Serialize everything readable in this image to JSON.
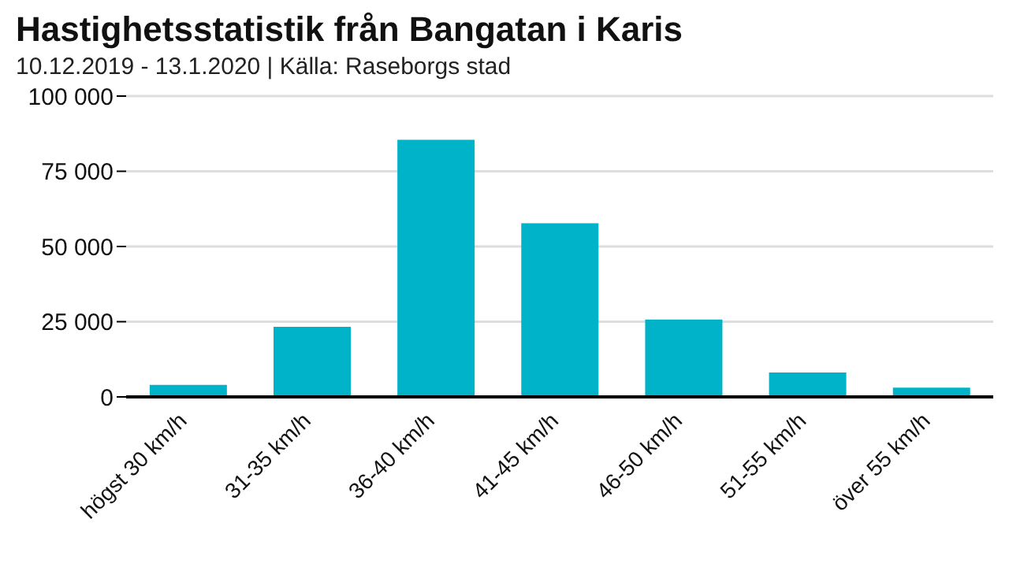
{
  "chart_data": {
    "type": "bar",
    "title": "Hastighetsstatistik från Bangatan i Karis",
    "subtitle": "10.12.2019 - 13.1.2020 | Källa: Raseborgs stad",
    "categories": [
      "högst 30 km/h",
      "31-35 km/h",
      "36-40 km/h",
      "41-45 km/h",
      "46-50 km/h",
      "51-55 km/h",
      "över 55 km/h"
    ],
    "values": [
      4000,
      23300,
      85500,
      57700,
      25700,
      8100,
      3100
    ],
    "color": "#00b3c8",
    "ylim": [
      0,
      100000
    ],
    "yticks": [
      {
        "value": 0,
        "label": "0"
      },
      {
        "value": 25000,
        "label": "25 000"
      },
      {
        "value": 50000,
        "label": "50 000"
      },
      {
        "value": 75000,
        "label": "75 000"
      },
      {
        "value": 100000,
        "label": "100 000"
      }
    ],
    "grid": "y"
  }
}
